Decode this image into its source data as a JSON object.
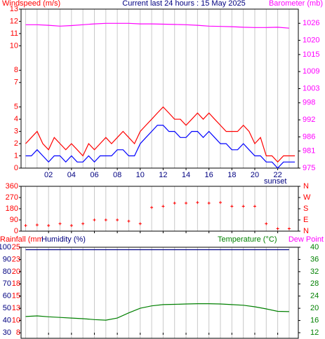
{
  "chart_data": [
    {
      "type": "line",
      "title": "Current last 24 hours : 15 May 2025",
      "ylabel": "Windspeed (m/s)",
      "y2label": "Barometer (mb)",
      "annotation": "sunset",
      "xlim": [
        -0.4,
        23.8
      ],
      "xticks": [
        {
          "value": 2,
          "label": "02"
        },
        {
          "value": 4,
          "label": "04"
        },
        {
          "value": 6,
          "label": "06"
        },
        {
          "value": 8,
          "label": "08"
        },
        10,
        12,
        14,
        16,
        18,
        20,
        22
      ],
      "ylim": [
        0,
        13
      ],
      "yticks": [
        0,
        1,
        2,
        3,
        4,
        5,
        7,
        8,
        10,
        11,
        12,
        13
      ],
      "y2lim": [
        975,
        1031
      ],
      "y2ticks": [
        975,
        981,
        986,
        992,
        998,
        1003,
        1009,
        1015,
        1020,
        1026
      ],
      "grid": true,
      "series": [
        {
          "color": "#ff0000",
          "x": [
            0,
            0.5,
            1,
            1.5,
            2,
            2.5,
            3,
            3.5,
            4,
            4.5,
            5,
            5.5,
            6,
            6.5,
            7,
            7.5,
            8,
            8.5,
            9,
            9.5,
            10,
            10.5,
            11,
            11.5,
            12,
            12.5,
            13,
            13.5,
            14,
            14.5,
            15,
            15.5,
            16,
            16.5,
            17,
            17.5,
            18,
            18.5,
            19,
            19.5,
            20,
            20.5,
            21,
            21.5,
            22,
            22.5,
            23,
            23.5
          ],
          "values": [
            2,
            2.5,
            3,
            2,
            1.5,
            2.5,
            2,
            1.5,
            2,
            1.5,
            1,
            2,
            1.5,
            2,
            2.5,
            2,
            2.5,
            3,
            2.5,
            2,
            3,
            3.5,
            4,
            4.5,
            5,
            4.5,
            4,
            4,
            3.5,
            4,
            4.5,
            4,
            4.5,
            4,
            3.5,
            3,
            3,
            3,
            3.5,
            3,
            2,
            2.5,
            1,
            1,
            0.5,
            1,
            1,
            1
          ]
        },
        {
          "color": "#0000ff",
          "x": [
            0,
            0.5,
            1,
            1.5,
            2,
            2.5,
            3,
            3.5,
            4,
            4.5,
            5,
            5.5,
            6,
            6.5,
            7,
            7.5,
            8,
            8.5,
            9,
            9.5,
            10,
            10.5,
            11,
            11.5,
            12,
            12.5,
            13,
            13.5,
            14,
            14.5,
            15,
            15.5,
            16,
            16.5,
            17,
            17.5,
            18,
            18.5,
            19,
            19.5,
            20,
            20.5,
            21,
            21.5,
            22,
            22.5,
            23,
            23.5
          ],
          "values": [
            1,
            1,
            1.5,
            1,
            0.5,
            1,
            1,
            0.5,
            1,
            0.5,
            0.5,
            1,
            0.5,
            1,
            1,
            1,
            1.5,
            1.5,
            1,
            1,
            2,
            2.5,
            3,
            3.5,
            3.5,
            3,
            3,
            2.5,
            2.5,
            3,
            3,
            2.5,
            3,
            2.5,
            2,
            2,
            1.5,
            1.5,
            2,
            1.5,
            1,
            1,
            0.5,
            0.5,
            0,
            0.5,
            0.5,
            0.5
          ]
        },
        {
          "color": "#ff00ff",
          "axis": "y2",
          "x": [
            0,
            1,
            2,
            3,
            4,
            5,
            6,
            7,
            8,
            9,
            10,
            11,
            12,
            13,
            14,
            15,
            16,
            17,
            18,
            19,
            20,
            21,
            22,
            23
          ],
          "values": [
            1025.5,
            1025.5,
            1025.3,
            1025,
            1025.2,
            1025.5,
            1025.8,
            1026,
            1026,
            1026,
            1025.8,
            1025.8,
            1025.7,
            1025.6,
            1025.5,
            1025.3,
            1025,
            1024.9,
            1024.8,
            1024.6,
            1024.5,
            1024.5,
            1024.6,
            1024.3
          ]
        }
      ]
    },
    {
      "type": "scatter",
      "xlim": [
        -0.4,
        23.8
      ],
      "ylim": [
        0,
        360
      ],
      "yticks": [
        0,
        90,
        180,
        270,
        360
      ],
      "y2ticks": [
        {
          "value": 360,
          "label": "N"
        },
        {
          "value": 270,
          "label": "W"
        },
        {
          "value": 180,
          "label": "S"
        },
        {
          "value": 90,
          "label": "E"
        },
        {
          "value": 0,
          "label": "N"
        }
      ],
      "color": "#ff0000",
      "x": [
        0,
        1,
        2,
        3,
        4,
        5,
        6,
        7,
        8,
        9,
        10,
        11,
        12,
        13,
        14,
        15,
        16,
        17,
        18,
        19,
        20,
        21,
        22,
        23
      ],
      "values": [
        45,
        50,
        45,
        60,
        45,
        60,
        90,
        90,
        90,
        80,
        60,
        190,
        200,
        225,
        225,
        230,
        225,
        230,
        200,
        200,
        200,
        60,
        20,
        20
      ]
    },
    {
      "type": "line",
      "y3label": "Rainfall (mm",
      "ylabel": "Humidity (%)",
      "y2label": "Temperature (°C)",
      "dewpoint_label": "Dew Point",
      "xlim": [
        -0.4,
        23.8
      ],
      "ylim": [
        30,
        100
      ],
      "yticks": [
        100,
        90,
        80,
        70,
        60,
        50,
        40,
        30
      ],
      "y3lim": [
        7.5,
        25
      ],
      "y3ticks": [
        25,
        {
          "value": 22.5,
          "label": "23"
        },
        20,
        {
          "value": 17.5,
          "label": "18"
        },
        15,
        {
          "value": 12.5,
          "label": "13"
        },
        10,
        {
          "value": 7.5,
          "label": "8"
        }
      ],
      "y2lim": [
        12,
        40
      ],
      "y2ticks": [
        40,
        36,
        32,
        28,
        24,
        20,
        16,
        12
      ],
      "series": [
        {
          "color": "#000080",
          "x": [
            0,
            1,
            2,
            3,
            4,
            5,
            6,
            7,
            8,
            9,
            10,
            11,
            12,
            13,
            14,
            15,
            16,
            17,
            18,
            19,
            20,
            21,
            22,
            23
          ],
          "values": [
            98,
            98,
            98,
            98,
            98,
            98,
            98,
            98,
            98,
            98,
            98,
            98,
            98,
            98,
            98,
            98,
            98,
            98,
            98,
            98,
            98,
            98,
            98,
            98
          ]
        },
        {
          "color": "#008000",
          "axis": "y2",
          "x": [
            0,
            1,
            2,
            3,
            4,
            5,
            6,
            7,
            8,
            9,
            10,
            11,
            12,
            13,
            14,
            15,
            16,
            17,
            18,
            19,
            20,
            21,
            22,
            23
          ],
          "values": [
            17.3,
            17.5,
            17.2,
            17,
            16.8,
            16.6,
            16.3,
            16.1,
            16.8,
            18.5,
            20,
            20.8,
            21.2,
            21.3,
            21.4,
            21.5,
            21.5,
            21.4,
            21.2,
            21,
            20.5,
            19.8,
            19,
            18.9
          ]
        }
      ]
    }
  ]
}
